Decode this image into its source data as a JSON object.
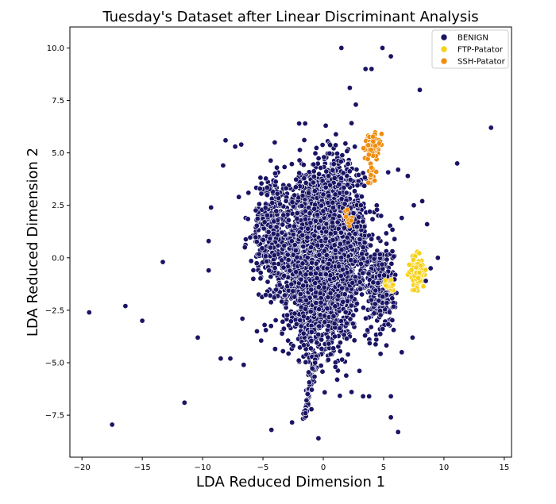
{
  "chart_data": {
    "type": "scatter",
    "title": "Tuesday's Dataset after Linear Discriminant Analysis",
    "xlabel": "LDA Reduced Dimension 1",
    "ylabel": "LDA Reduced Dimension 2",
    "xlim": [
      -21,
      15.6
    ],
    "ylim": [
      -9.5,
      11
    ],
    "xticks": [
      -20,
      -15,
      -10,
      -5,
      0,
      5,
      10,
      15
    ],
    "yticks": [
      -7.5,
      -5.0,
      -2.5,
      0.0,
      2.5,
      5.0,
      7.5,
      10.0
    ],
    "xtick_labels": [
      "−20",
      "−15",
      "−10",
      "−5",
      "0",
      "5",
      "10",
      "15"
    ],
    "ytick_labels": [
      "−7.5",
      "−5.0",
      "−2.5",
      "0.0",
      "2.5",
      "5.0",
      "7.5",
      "10.0"
    ],
    "grid": false,
    "legend": "top-right",
    "series": [
      {
        "name": "BENIGN",
        "color": "#1a1464",
        "points": [
          [
            -19.4,
            -2.6
          ],
          [
            -17.5,
            -7.95
          ],
          [
            -16.4,
            -2.3
          ],
          [
            -15.0,
            -3.0
          ],
          [
            -13.3,
            -0.2
          ],
          [
            -11.5,
            -6.9
          ],
          [
            -10.4,
            -3.8
          ],
          [
            -9.5,
            0.8
          ],
          [
            -9.5,
            -0.6
          ],
          [
            -9.3,
            2.4
          ],
          [
            -8.5,
            -4.8
          ],
          [
            -8.3,
            4.4
          ],
          [
            -8.1,
            5.6
          ],
          [
            -7.7,
            -4.8
          ],
          [
            -7.3,
            5.3
          ],
          [
            -7.0,
            2.9
          ],
          [
            -6.8,
            5.4
          ],
          [
            -6.7,
            -2.9
          ],
          [
            -6.6,
            -5.1
          ],
          [
            -6.5,
            0.5
          ],
          [
            -6.2,
            3.1
          ],
          [
            -5.8,
            -1.0
          ],
          [
            -5.5,
            -3.5
          ],
          [
            -4.3,
            -8.2
          ],
          [
            -0.4,
            -8.6
          ],
          [
            2.2,
            8.1
          ],
          [
            1.5,
            10.0
          ],
          [
            2.7,
            7.3
          ],
          [
            3.5,
            9.0
          ],
          [
            4.0,
            9.0
          ],
          [
            4.9,
            10.0
          ],
          [
            5.6,
            9.6
          ],
          [
            8.0,
            8.0
          ],
          [
            9.5,
            0.0
          ],
          [
            11.1,
            4.5
          ],
          [
            13.9,
            6.2
          ],
          [
            8.5,
            -1.1
          ],
          [
            8.9,
            -0.5
          ],
          [
            7.5,
            2.5
          ],
          [
            8.2,
            2.7
          ],
          [
            8.6,
            1.6
          ],
          [
            6.5,
            1.9
          ],
          [
            6.2,
            4.2
          ],
          [
            7.0,
            3.9
          ],
          [
            7.4,
            -3.8
          ],
          [
            6.5,
            -4.5
          ],
          [
            5.6,
            -6.6
          ],
          [
            5.6,
            -7.6
          ],
          [
            6.2,
            -8.3
          ],
          [
            3.3,
            -6.6
          ],
          [
            3.8,
            -6.6
          ],
          [
            0.2,
            6.3
          ],
          [
            -1.5,
            6.4
          ],
          [
            -2.0,
            6.4
          ]
        ]
      },
      {
        "name": "FTP-Patator",
        "color": "#f7d117"
      },
      {
        "name": "SSH-Patator",
        "color": "#f08d10"
      }
    ],
    "clusters": [
      {
        "series": "BENIGN",
        "shape": "ellipse",
        "center": [
          -0.2,
          0.0
        ],
        "spread": [
          2.8,
          3.4
        ],
        "count": 3400
      },
      {
        "series": "BENIGN",
        "shape": "ellipse",
        "center": [
          1.2,
          1.5
        ],
        "spread": [
          2.0,
          2.6
        ],
        "count": 900
      },
      {
        "series": "BENIGN",
        "shape": "ellipse",
        "center": [
          -4.5,
          1.5
        ],
        "spread": [
          1.2,
          2.2
        ],
        "count": 300
      },
      {
        "series": "BENIGN",
        "shape": "ellipse",
        "center": [
          4.8,
          -1.5
        ],
        "spread": [
          1.0,
          2.0
        ],
        "count": 300
      },
      {
        "series": "BENIGN",
        "shape": "line",
        "from": [
          -1.6,
          -7.8
        ],
        "to": [
          -0.6,
          -4.5
        ],
        "count": 80
      },
      {
        "series": "FTP-Patator",
        "shape": "ellipse",
        "center": [
          7.8,
          -0.7
        ],
        "spread": [
          0.5,
          0.8
        ],
        "count": 110
      },
      {
        "series": "FTP-Patator",
        "shape": "ellipse",
        "center": [
          5.5,
          -1.3
        ],
        "spread": [
          0.3,
          0.3
        ],
        "count": 14
      },
      {
        "series": "SSH-Patator",
        "shape": "ellipse",
        "center": [
          4.0,
          5.3
        ],
        "spread": [
          0.55,
          0.6
        ],
        "count": 70
      },
      {
        "series": "SSH-Patator",
        "shape": "ellipse",
        "center": [
          4.0,
          3.9
        ],
        "spread": [
          0.25,
          0.5
        ],
        "count": 14
      },
      {
        "series": "SSH-Patator",
        "shape": "ellipse",
        "center": [
          2.0,
          2.0
        ],
        "spread": [
          0.4,
          0.3
        ],
        "count": 10
      }
    ]
  }
}
